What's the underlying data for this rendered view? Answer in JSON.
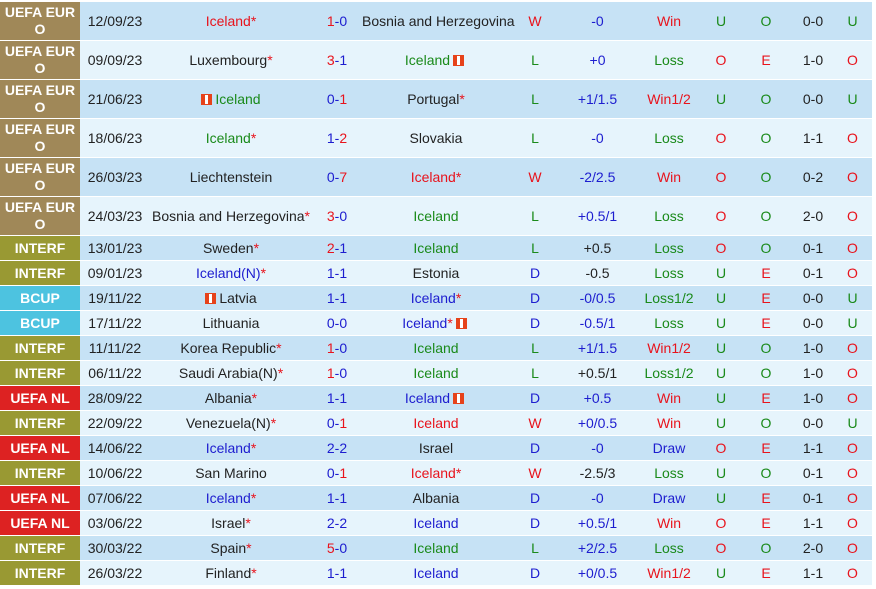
{
  "colors": {
    "league_uefa_euro": "#a08858",
    "league_interf": "#999933",
    "league_bcup": "#4dc3e0",
    "league_uefa_nl": "#dd2222",
    "row_odd": "#c6e2f5",
    "row_even": "#e6f4fc",
    "red": "#e8131c",
    "green": "#1a8a1a",
    "blue": "#1d1dcf"
  },
  "matches": [
    {
      "league": "UEFA EURO",
      "date": "12/09/23",
      "home": "Iceland",
      "home_star": "*",
      "home_flag": false,
      "home_color": "red",
      "score_home": "1",
      "score_away": "0",
      "score_win": "home",
      "away": "Bosnia and Herzegovina",
      "away_star": "",
      "away_flag": false,
      "away_color": "black",
      "wdl": "W",
      "handicap": "-0",
      "handicap_color": "blue",
      "result": "Win",
      "ou1": "U",
      "ou2": "O",
      "ht": "0-0",
      "ou3": "U"
    },
    {
      "league": "UEFA EURO",
      "date": "09/09/23",
      "home": "Luxembourg",
      "home_star": "*",
      "home_flag": false,
      "home_color": "black",
      "score_home": "3",
      "score_away": "1",
      "score_win": "home",
      "away": "Iceland",
      "away_star": "",
      "away_flag": true,
      "away_color": "green",
      "wdl": "L",
      "handicap": "+0",
      "handicap_color": "blue",
      "result": "Loss",
      "ou1": "O",
      "ou2": "E",
      "ht": "1-0",
      "ou3": "O"
    },
    {
      "league": "UEFA EURO",
      "date": "21/06/23",
      "home": "Iceland",
      "home_star": "",
      "home_flag": true,
      "home_color": "green",
      "score_home": "0",
      "score_away": "1",
      "score_win": "away",
      "away": "Portugal",
      "away_star": "*",
      "away_flag": false,
      "away_color": "black",
      "wdl": "L",
      "handicap": "+1/1.5",
      "handicap_color": "blue",
      "result": "Win1/2",
      "ou1": "U",
      "ou2": "O",
      "ht": "0-0",
      "ou3": "U"
    },
    {
      "league": "UEFA EURO",
      "date": "18/06/23",
      "home": "Iceland",
      "home_star": "*",
      "home_flag": false,
      "home_color": "green",
      "score_home": "1",
      "score_away": "2",
      "score_win": "away",
      "away": "Slovakia",
      "away_star": "",
      "away_flag": false,
      "away_color": "black",
      "wdl": "L",
      "handicap": "-0",
      "handicap_color": "blue",
      "result": "Loss",
      "ou1": "O",
      "ou2": "O",
      "ht": "1-1",
      "ou3": "O"
    },
    {
      "league": "UEFA EURO",
      "date": "26/03/23",
      "home": "Liechtenstein",
      "home_star": "",
      "home_flag": false,
      "home_color": "black",
      "score_home": "0",
      "score_away": "7",
      "score_win": "away",
      "away": "Iceland",
      "away_star": "*",
      "away_flag": false,
      "away_color": "red",
      "wdl": "W",
      "handicap": "-2/2.5",
      "handicap_color": "blue",
      "result": "Win",
      "ou1": "O",
      "ou2": "O",
      "ht": "0-2",
      "ou3": "O"
    },
    {
      "league": "UEFA EURO",
      "date": "24/03/23",
      "home": "Bosnia and Herzegovina",
      "home_star": "*",
      "home_flag": false,
      "home_color": "black",
      "score_home": "3",
      "score_away": "0",
      "score_win": "home",
      "away": "Iceland",
      "away_star": "",
      "away_flag": false,
      "away_color": "green",
      "wdl": "L",
      "handicap": "+0.5/1",
      "handicap_color": "blue",
      "result": "Loss",
      "ou1": "O",
      "ou2": "O",
      "ht": "2-0",
      "ou3": "O"
    },
    {
      "league": "INTERF",
      "date": "13/01/23",
      "home": "Sweden",
      "home_star": "*",
      "home_flag": false,
      "home_color": "black",
      "score_home": "2",
      "score_away": "1",
      "score_win": "home",
      "away": "Iceland",
      "away_star": "",
      "away_flag": false,
      "away_color": "green",
      "wdl": "L",
      "handicap": "+0.5",
      "handicap_color": "black",
      "result": "Loss",
      "ou1": "O",
      "ou2": "O",
      "ht": "0-1",
      "ou3": "O"
    },
    {
      "league": "INTERF",
      "date": "09/01/23",
      "home": "Iceland(N)",
      "home_star": "*",
      "home_flag": false,
      "home_color": "blue",
      "score_home": "1",
      "score_away": "1",
      "score_win": "none",
      "away": "Estonia",
      "away_star": "",
      "away_flag": false,
      "away_color": "black",
      "wdl": "D",
      "handicap": "-0.5",
      "handicap_color": "black",
      "result": "Loss",
      "ou1": "U",
      "ou2": "E",
      "ht": "0-1",
      "ou3": "O"
    },
    {
      "league": "BCUP",
      "date": "19/11/22",
      "home": "Latvia",
      "home_star": "",
      "home_flag": true,
      "home_color": "black",
      "score_home": "1",
      "score_away": "1",
      "score_win": "none",
      "away": "Iceland",
      "away_star": "*",
      "away_flag": false,
      "away_color": "blue",
      "wdl": "D",
      "handicap": "-0/0.5",
      "handicap_color": "blue",
      "result": "Loss1/2",
      "ou1": "U",
      "ou2": "E",
      "ht": "0-0",
      "ou3": "U"
    },
    {
      "league": "BCUP",
      "date": "17/11/22",
      "home": "Lithuania",
      "home_star": "",
      "home_flag": false,
      "home_color": "black",
      "score_home": "0",
      "score_away": "0",
      "score_win": "none",
      "away": "Iceland",
      "away_star": "*",
      "away_flag": true,
      "away_color": "blue",
      "wdl": "D",
      "handicap": "-0.5/1",
      "handicap_color": "blue",
      "result": "Loss",
      "ou1": "U",
      "ou2": "E",
      "ht": "0-0",
      "ou3": "U"
    },
    {
      "league": "INTERF",
      "date": "11/11/22",
      "home": "Korea Republic",
      "home_star": "*",
      "home_flag": false,
      "home_color": "black",
      "score_home": "1",
      "score_away": "0",
      "score_win": "home",
      "away": "Iceland",
      "away_star": "",
      "away_flag": false,
      "away_color": "green",
      "wdl": "L",
      "handicap": "+1/1.5",
      "handicap_color": "blue",
      "result": "Win1/2",
      "ou1": "U",
      "ou2": "O",
      "ht": "1-0",
      "ou3": "O"
    },
    {
      "league": "INTERF",
      "date": "06/11/22",
      "home": "Saudi Arabia(N)",
      "home_star": "*",
      "home_flag": false,
      "home_color": "black",
      "score_home": "1",
      "score_away": "0",
      "score_win": "home",
      "away": "Iceland",
      "away_star": "",
      "away_flag": false,
      "away_color": "green",
      "wdl": "L",
      "handicap": "+0.5/1",
      "handicap_color": "black",
      "result": "Loss1/2",
      "ou1": "U",
      "ou2": "O",
      "ht": "1-0",
      "ou3": "O"
    },
    {
      "league": "UEFA NL",
      "date": "28/09/22",
      "home": "Albania",
      "home_star": "*",
      "home_flag": false,
      "home_color": "black",
      "score_home": "1",
      "score_away": "1",
      "score_win": "none",
      "away": "Iceland",
      "away_star": "",
      "away_flag": true,
      "away_color": "blue",
      "wdl": "D",
      "handicap": "+0.5",
      "handicap_color": "blue",
      "result": "Win",
      "ou1": "U",
      "ou2": "E",
      "ht": "1-0",
      "ou3": "O"
    },
    {
      "league": "INTERF",
      "date": "22/09/22",
      "home": "Venezuela(N)",
      "home_star": "*",
      "home_flag": false,
      "home_color": "black",
      "score_home": "0",
      "score_away": "1",
      "score_win": "away",
      "away": "Iceland",
      "away_star": "",
      "away_flag": false,
      "away_color": "red",
      "wdl": "W",
      "handicap": "+0/0.5",
      "handicap_color": "blue",
      "result": "Win",
      "ou1": "U",
      "ou2": "O",
      "ht": "0-0",
      "ou3": "U"
    },
    {
      "league": "UEFA NL",
      "date": "14/06/22",
      "home": "Iceland",
      "home_star": "*",
      "home_flag": false,
      "home_color": "blue",
      "score_home": "2",
      "score_away": "2",
      "score_win": "none",
      "away": "Israel",
      "away_star": "",
      "away_flag": false,
      "away_color": "black",
      "wdl": "D",
      "handicap": "-0",
      "handicap_color": "blue",
      "result": "Draw",
      "ou1": "O",
      "ou2": "E",
      "ht": "1-1",
      "ou3": "O"
    },
    {
      "league": "INTERF",
      "date": "10/06/22",
      "home": "San Marino",
      "home_star": "",
      "home_flag": false,
      "home_color": "black",
      "score_home": "0",
      "score_away": "1",
      "score_win": "away",
      "away": "Iceland",
      "away_star": "*",
      "away_flag": false,
      "away_color": "red",
      "wdl": "W",
      "handicap": "-2.5/3",
      "handicap_color": "black",
      "result": "Loss",
      "ou1": "U",
      "ou2": "O",
      "ht": "0-1",
      "ou3": "O"
    },
    {
      "league": "UEFA NL",
      "date": "07/06/22",
      "home": "Iceland",
      "home_star": "*",
      "home_flag": false,
      "home_color": "blue",
      "score_home": "1",
      "score_away": "1",
      "score_win": "none",
      "away": "Albania",
      "away_star": "",
      "away_flag": false,
      "away_color": "black",
      "wdl": "D",
      "handicap": "-0",
      "handicap_color": "blue",
      "result": "Draw",
      "ou1": "U",
      "ou2": "E",
      "ht": "0-1",
      "ou3": "O"
    },
    {
      "league": "UEFA NL",
      "date": "03/06/22",
      "home": "Israel",
      "home_star": "*",
      "home_flag": false,
      "home_color": "black",
      "score_home": "2",
      "score_away": "2",
      "score_win": "none",
      "away": "Iceland",
      "away_star": "",
      "away_flag": false,
      "away_color": "blue",
      "wdl": "D",
      "handicap": "+0.5/1",
      "handicap_color": "blue",
      "result": "Win",
      "ou1": "O",
      "ou2": "E",
      "ht": "1-1",
      "ou3": "O"
    },
    {
      "league": "INTERF",
      "date": "30/03/22",
      "home": "Spain",
      "home_star": "*",
      "home_flag": false,
      "home_color": "black",
      "score_home": "5",
      "score_away": "0",
      "score_win": "home",
      "away": "Iceland",
      "away_star": "",
      "away_flag": false,
      "away_color": "green",
      "wdl": "L",
      "handicap": "+2/2.5",
      "handicap_color": "blue",
      "result": "Loss",
      "ou1": "O",
      "ou2": "O",
      "ht": "2-0",
      "ou3": "O"
    },
    {
      "league": "INTERF",
      "date": "26/03/22",
      "home": "Finland",
      "home_star": "*",
      "home_flag": false,
      "home_color": "black",
      "score_home": "1",
      "score_away": "1",
      "score_win": "none",
      "away": "Iceland",
      "away_star": "",
      "away_flag": false,
      "away_color": "blue",
      "wdl": "D",
      "handicap": "+0/0.5",
      "handicap_color": "blue",
      "result": "Win1/2",
      "ou1": "U",
      "ou2": "E",
      "ht": "1-1",
      "ou3": "O"
    }
  ]
}
